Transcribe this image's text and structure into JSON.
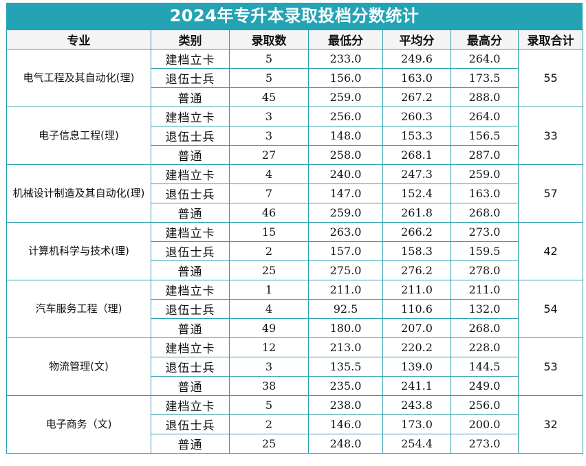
{
  "title": "2024年专升本录取投档分数统计",
  "headers": [
    "专业",
    "类别",
    "录取数",
    "最低分",
    "平均分",
    "最高分",
    "录取合计"
  ],
  "majors": [
    {
      "name": "电气工程及其自动化(理)",
      "total": "55",
      "rows": [
        {
          "category": "建档立卡",
          "count": "5",
          "min": "233.0",
          "avg": "249.6",
          "max": "264.0"
        },
        {
          "category": "退伍士兵",
          "count": "5",
          "min": "156.0",
          "avg": "163.0",
          "max": "173.5"
        },
        {
          "category": "普通",
          "count": "45",
          "min": "259.0",
          "avg": "267.2",
          "max": "288.0"
        }
      ]
    },
    {
      "name": "电子信息工程(理)",
      "total": "33",
      "rows": [
        {
          "category": "建档立卡",
          "count": "3",
          "min": "256.0",
          "avg": "260.3",
          "max": "264.0"
        },
        {
          "category": "退伍士兵",
          "count": "3",
          "min": "148.0",
          "avg": "153.3",
          "max": "156.5"
        },
        {
          "category": "普通",
          "count": "27",
          "min": "258.0",
          "avg": "268.1",
          "max": "287.0"
        }
      ]
    },
    {
      "name": "机械设计制造及其自动化(理)",
      "total": "57",
      "rows": [
        {
          "category": "建档立卡",
          "count": "4",
          "min": "240.0",
          "avg": "247.3",
          "max": "259.0"
        },
        {
          "category": "退伍士兵",
          "count": "7",
          "min": "147.0",
          "avg": "152.4",
          "max": "163.0"
        },
        {
          "category": "普通",
          "count": "46",
          "min": "259.0",
          "avg": "261.8",
          "max": "268.0"
        }
      ]
    },
    {
      "name": "计算机科学与技术(理)",
      "total": "42",
      "rows": [
        {
          "category": "建档立卡",
          "count": "15",
          "min": "263.0",
          "avg": "266.2",
          "max": "273.0"
        },
        {
          "category": "退伍士兵",
          "count": "2",
          "min": "157.0",
          "avg": "158.3",
          "max": "159.5"
        },
        {
          "category": "普通",
          "count": "25",
          "min": "275.0",
          "avg": "276.2",
          "max": "278.0"
        }
      ]
    },
    {
      "name": "汽车服务工程（理)",
      "total": "54",
      "rows": [
        {
          "category": "建档立卡",
          "count": "1",
          "min": "211.0",
          "avg": "211.0",
          "max": "211.0"
        },
        {
          "category": "退伍士兵",
          "count": "4",
          "min": "92.5",
          "avg": "110.6",
          "max": "132.0"
        },
        {
          "category": "普通",
          "count": "49",
          "min": "180.0",
          "avg": "207.0",
          "max": "268.0"
        }
      ]
    },
    {
      "name": "物流管理(文)",
      "total": "53",
      "rows": [
        {
          "category": "建档立卡",
          "count": "12",
          "min": "213.0",
          "avg": "220.2",
          "max": "228.0"
        },
        {
          "category": "退伍士兵",
          "count": "3",
          "min": "135.5",
          "avg": "139.0",
          "max": "144.5"
        },
        {
          "category": "普通",
          "count": "38",
          "min": "235.0",
          "avg": "241.1",
          "max": "249.0"
        }
      ]
    },
    {
      "name": "电子商务（文)",
      "total": "32",
      "rows": [
        {
          "category": "建档立卡",
          "count": "5",
          "min": "238.0",
          "avg": "243.8",
          "max": "256.0"
        },
        {
          "category": "退伍士兵",
          "count": "2",
          "min": "146.0",
          "avg": "173.0",
          "max": "200.0"
        },
        {
          "category": "普通",
          "count": "25",
          "min": "248.0",
          "avg": "254.4",
          "max": "273.0"
        }
      ]
    }
  ]
}
